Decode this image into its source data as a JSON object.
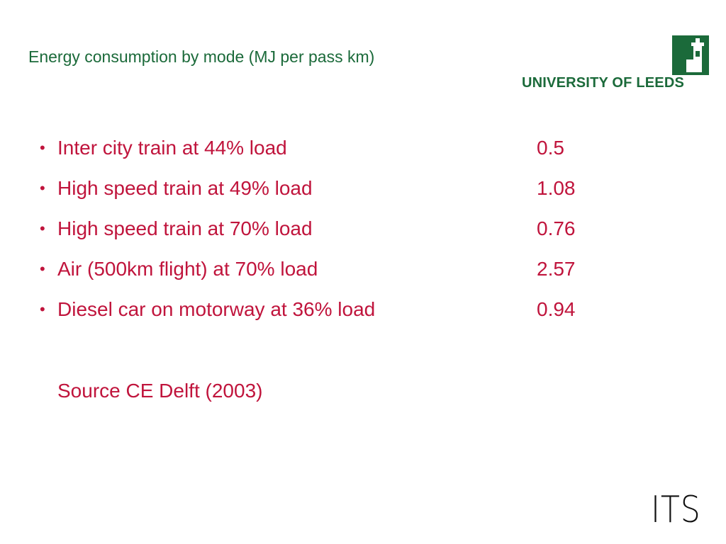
{
  "title": "Energy consumption by mode (MJ per pass km)",
  "logo": {
    "name": "UNIVERSITY OF LEEDS"
  },
  "items": [
    {
      "label": "Inter city train at 44% load",
      "value": 0.5
    },
    {
      "label": "High speed train at 49% load",
      "value": 1.08
    },
    {
      "label": "High speed train at 70% load",
      "value": 0.76
    },
    {
      "label": "Air (500km flight) at 70% load",
      "value": 2.57
    },
    {
      "label": "Diesel car on motorway at 36% load",
      "value": 0.94
    }
  ],
  "source": "Source CE Delft (2003)",
  "footer_logo": "ITS"
}
